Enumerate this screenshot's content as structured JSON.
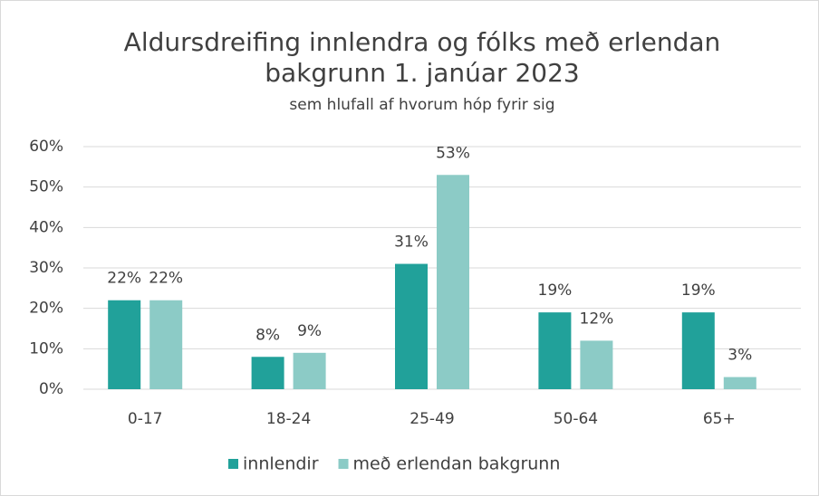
{
  "chart_data": {
    "type": "bar",
    "title": "Aldursdreifing innlendra og fólks með erlendan",
    "title_line2": "bakgrunn 1. janúar 2023",
    "subtitle": "sem hlufall af hvorum hóp fyrir sig",
    "categories": [
      "0-17",
      "18-24",
      "25-49",
      "50-64",
      "65+"
    ],
    "series": [
      {
        "name": "innlendir",
        "color": "#21a19a",
        "values": [
          22,
          8,
          31,
          19,
          19
        ],
        "value_labels": [
          "22%",
          "8%",
          "31%",
          "19%",
          "19%"
        ]
      },
      {
        "name": "með erlendan bakgrunn",
        "color": "#8ccbc6",
        "values": [
          22,
          9,
          53,
          12,
          3
        ],
        "value_labels": [
          "22%",
          "9%",
          "53%",
          "12%",
          "3%"
        ]
      }
    ],
    "ylim": [
      0,
      60
    ],
    "yticks": [
      {
        "value": 0,
        "label": "0%"
      },
      {
        "value": 10,
        "label": "10%"
      },
      {
        "value": 20,
        "label": "20%"
      },
      {
        "value": 30,
        "label": "30%"
      },
      {
        "value": 40,
        "label": "40%"
      },
      {
        "value": 50,
        "label": "50%"
      },
      {
        "value": 60,
        "label": "60%"
      }
    ],
    "grid": true,
    "legend": "bottom"
  }
}
